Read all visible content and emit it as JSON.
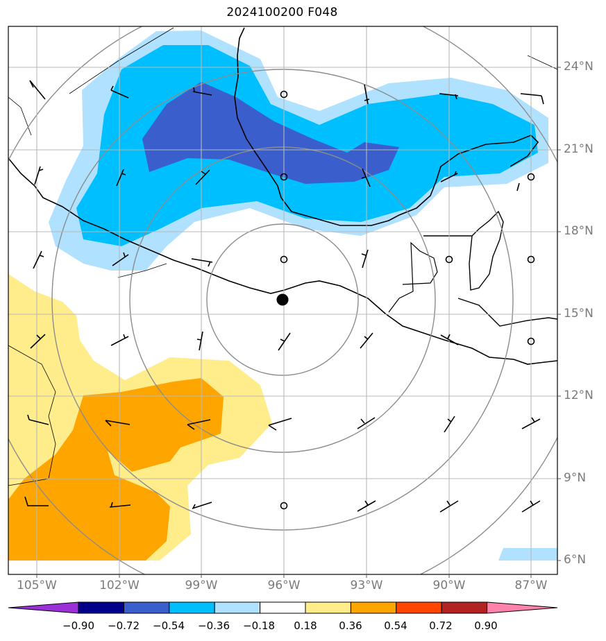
{
  "title": "2024100200 F048",
  "lat_labels": [
    "24°N",
    "21°N",
    "18°N",
    "15°N",
    "12°N",
    "9°N",
    "6°N"
  ],
  "lon_labels": [
    "105°W",
    "102°W",
    "99°W",
    "96°W",
    "93°W",
    "90°W",
    "87°W"
  ],
  "colorbar": {
    "ticks": [
      "−0.90",
      "−0.72",
      "−0.54",
      "−0.36",
      "−0.18",
      "0.18",
      "0.36",
      "0.54",
      "0.72",
      "0.90"
    ],
    "colors": [
      "#9b30d9",
      "#00008b",
      "#3a5fcd",
      "#00bfff",
      "#b0e2ff",
      "#ffffff",
      "#ffec8b",
      "#ffa500",
      "#ff4500",
      "#b22222",
      "#ff82ab"
    ]
  },
  "storm_center": {
    "lon": -96.0,
    "lat": 15.5
  }
}
